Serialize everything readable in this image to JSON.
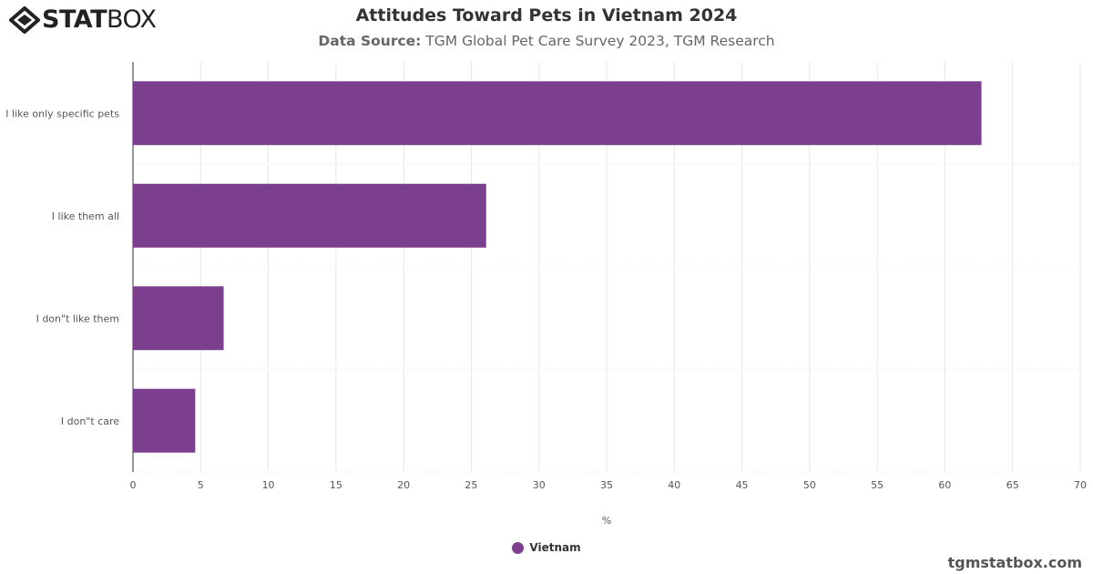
{
  "logo": {
    "text_bold": "STAT",
    "text_light": "BOX"
  },
  "header": {
    "title": "Attitudes Toward Pets in Vietnam 2024",
    "subtitle_label": "Data Source:",
    "subtitle_text": " TGM Global Pet Care Survey 2023, TGM Research"
  },
  "chart_data": {
    "type": "bar",
    "orientation": "horizontal",
    "title": "Attitudes Toward Pets in Vietnam 2024",
    "categories": [
      "I like only specific pets",
      "I like them all",
      "I don\"t like them",
      "I don\"t care"
    ],
    "series": [
      {
        "name": "Vietnam",
        "color": "#7b3f8e",
        "values": [
          62.7,
          26.1,
          6.7,
          4.6
        ]
      }
    ],
    "xlabel": "%",
    "xlim": [
      0,
      70
    ],
    "xticks": [
      "0",
      "5",
      "10",
      "15",
      "20",
      "25",
      "30",
      "35",
      "40",
      "45",
      "50",
      "55",
      "60",
      "65",
      "70"
    ],
    "grid": true,
    "legend": "bottom-center"
  },
  "footer": {
    "credit": "tgmstatbox.com"
  }
}
